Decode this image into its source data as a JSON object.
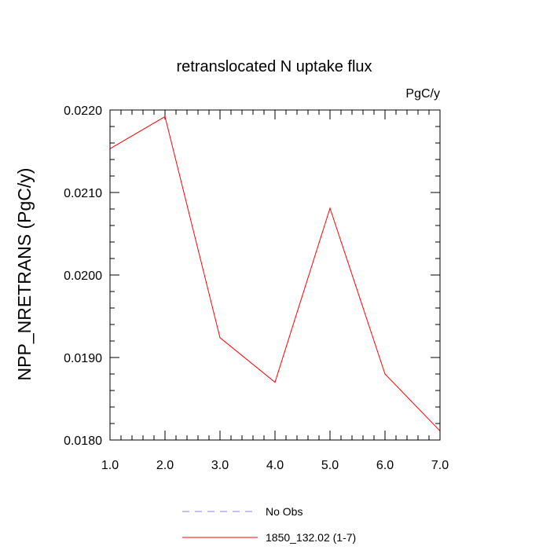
{
  "chart_data": {
    "type": "line",
    "title": "retranslocated N uptake flux",
    "units_label": "PgC/y",
    "xlabel": "",
    "ylabel": "NPP_NRETRANS  (PgC/y)",
    "xlim": [
      1.0,
      7.0
    ],
    "ylim": [
      0.018,
      0.022
    ],
    "x_ticks": [
      "1.0",
      "2.0",
      "3.0",
      "4.0",
      "5.0",
      "6.0",
      "7.0"
    ],
    "y_ticks": [
      "0.0180",
      "0.0190",
      "0.0200",
      "0.0210",
      "0.0220"
    ],
    "x": [
      1,
      2,
      3,
      4,
      5,
      6,
      7
    ],
    "series": [
      {
        "name": "1850_132.02 (1-7)",
        "color": "#ff0000",
        "style": "solid",
        "values": [
          0.02153,
          0.02192,
          0.01924,
          0.0187,
          0.02081,
          0.0188,
          0.01811
        ]
      }
    ],
    "legend": {
      "placement": "bottom-center",
      "entries": [
        {
          "label": "No Obs",
          "color": "#8080ff",
          "style": "dashed"
        },
        {
          "label": "1850_132.02 (1-7)",
          "color": "#ff0000",
          "style": "solid"
        }
      ]
    },
    "grid": false
  }
}
